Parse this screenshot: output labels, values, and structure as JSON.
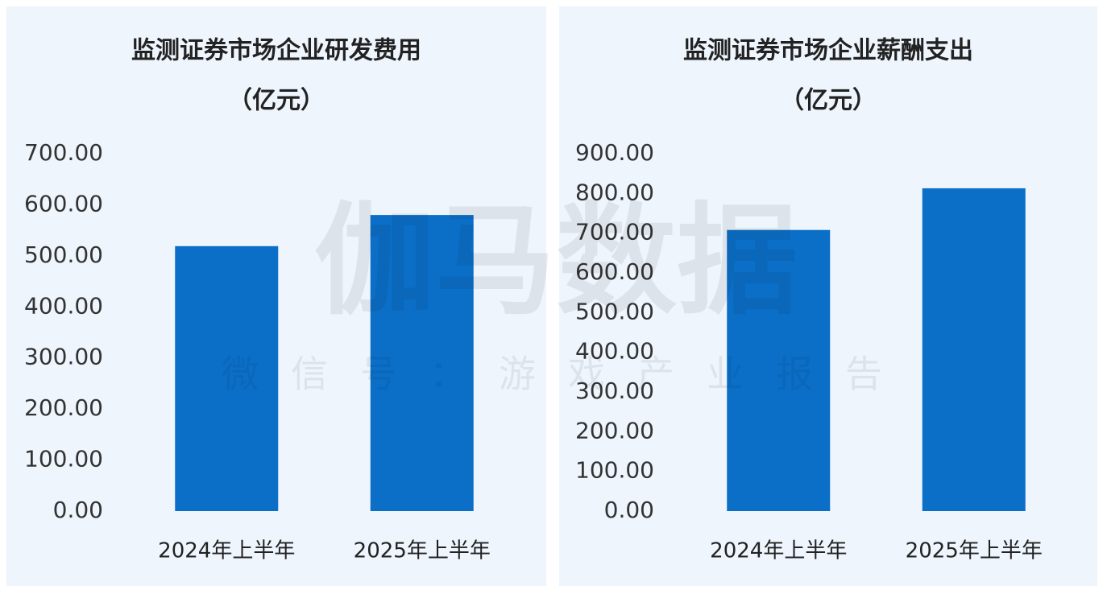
{
  "chart_data": [
    {
      "type": "bar",
      "title": "监测证券市场企业研发费用",
      "subtitle": "（亿元）",
      "categories": [
        "2024年上半年",
        "2025年上半年"
      ],
      "values": [
        519,
        580
      ],
      "color": "#0b6fc8",
      "ylim": [
        0,
        700
      ],
      "yticks": [
        {
          "value": 0,
          "label": "0.00"
        },
        {
          "value": 100,
          "label": "100.00"
        },
        {
          "value": 200,
          "label": "200.00"
        },
        {
          "value": 300,
          "label": "300.00"
        },
        {
          "value": 400,
          "label": "400.00"
        },
        {
          "value": 500,
          "label": "500.00"
        },
        {
          "value": 600,
          "label": "600.00"
        },
        {
          "value": 700,
          "label": "700.00"
        }
      ]
    },
    {
      "type": "bar",
      "title": "监测证券市场企业薪酬支出",
      "subtitle": "（亿元）",
      "categories": [
        "2024年上半年",
        "2025年上半年"
      ],
      "values": [
        708,
        813
      ],
      "color": "#0b6fc8",
      "ylim": [
        0,
        900
      ],
      "yticks": [
        {
          "value": 0,
          "label": "0.00"
        },
        {
          "value": 100,
          "label": "100.00"
        },
        {
          "value": 200,
          "label": "200.00"
        },
        {
          "value": 300,
          "label": "300.00"
        },
        {
          "value": 400,
          "label": "400.00"
        },
        {
          "value": 500,
          "label": "500.00"
        },
        {
          "value": 600,
          "label": "600.00"
        },
        {
          "value": 700,
          "label": "700.00"
        },
        {
          "value": 800,
          "label": "800.00"
        },
        {
          "value": 900,
          "label": "900.00"
        }
      ]
    }
  ],
  "watermark": {
    "title": "伽马数据",
    "subtitle": "微信号：游戏产业报告"
  }
}
